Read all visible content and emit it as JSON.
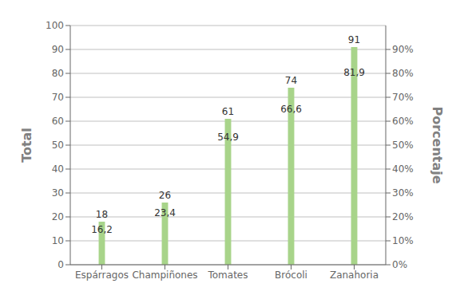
{
  "chart_data": {
    "type": "bar",
    "categories": [
      "Espárragos",
      "Champiñones",
      "Tomates",
      "Brócoli",
      "Zanahoria"
    ],
    "values": [
      18,
      26,
      61,
      74,
      91
    ],
    "data_labels": true,
    "percentages": [
      16.2,
      23.4,
      54.9,
      66.6,
      81.9
    ],
    "percentage_labels": [
      "16,2",
      "23,4",
      "54,9",
      "66,6",
      "81,9"
    ],
    "color": "#a8d48a",
    "ylabel": "Total",
    "y2label": "Porcentaje",
    "ylim": [
      0,
      100
    ],
    "yticks": [
      0,
      10,
      20,
      30,
      40,
      50,
      60,
      70,
      80,
      90,
      100
    ],
    "y2lim": [
      0,
      100
    ],
    "y2ticks": [
      {
        "value": 0,
        "label": "0%"
      },
      {
        "value": 10,
        "label": "10%"
      },
      {
        "value": 20,
        "label": "20%"
      },
      {
        "value": 30,
        "label": "30%"
      },
      {
        "value": 40,
        "label": "40%"
      },
      {
        "value": 50,
        "label": "50%"
      },
      {
        "value": 60,
        "label": "60%"
      },
      {
        "value": 70,
        "label": "70%"
      },
      {
        "value": 80,
        "label": "80%"
      },
      {
        "value": 90,
        "label": "90%"
      }
    ],
    "grid": true
  }
}
